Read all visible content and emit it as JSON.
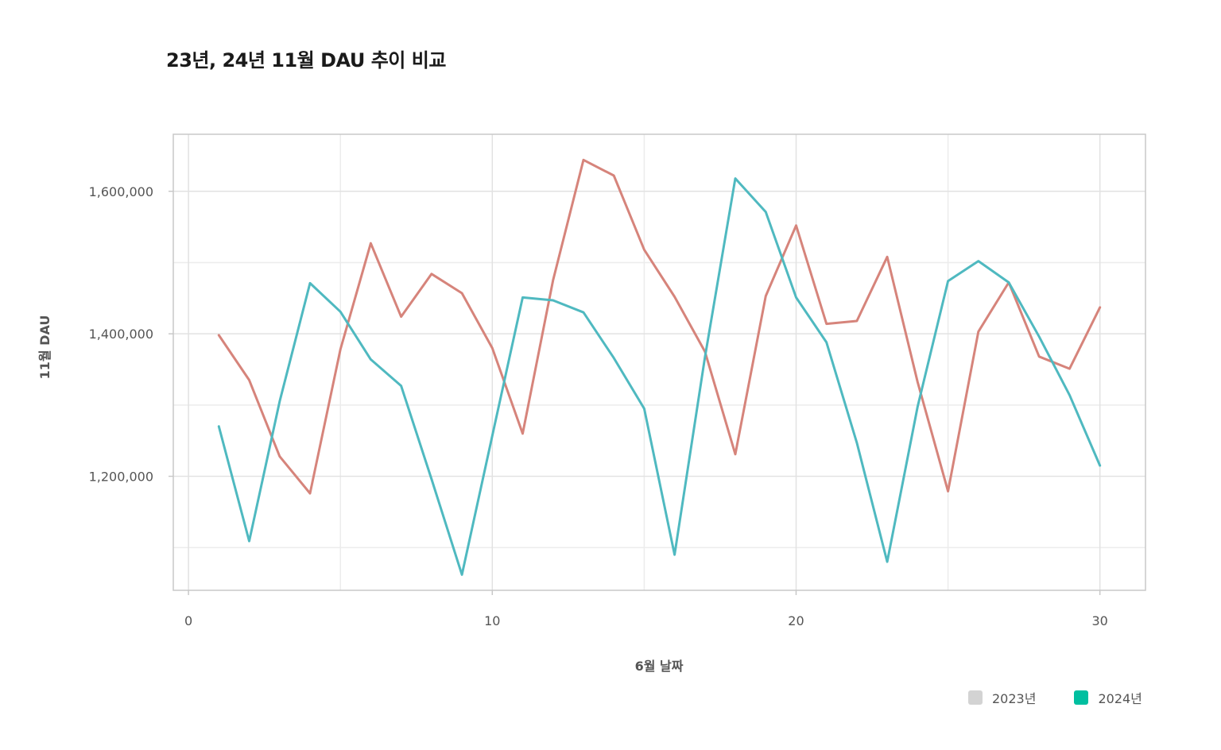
{
  "chart_data": {
    "type": "line",
    "title": "23년, 24년 11월 DAU 추이 비교",
    "xlabel": "6월 날짜",
    "ylabel": "11월 DAU",
    "xlim": [
      -0.5,
      31.5
    ],
    "ylim": [
      1040000,
      1680000
    ],
    "xticks": [
      0,
      10,
      20,
      30
    ],
    "xtick_labels": [
      "0",
      "10",
      "20",
      "30"
    ],
    "yticks": [
      1200000,
      1400000,
      1600000
    ],
    "ytick_labels": [
      "1,200,000",
      "1,400,000",
      "1,600,000"
    ],
    "grid": true,
    "legend_position": "bottom-right",
    "legend": [
      {
        "label": "2023년",
        "color": "#d3d3d3"
      },
      {
        "label": "2024년",
        "color": "#00bfa0"
      }
    ],
    "series": [
      {
        "color": "#d6847b",
        "x": [
          1,
          2,
          3,
          4,
          5,
          6,
          7,
          8,
          9,
          10,
          11,
          12,
          13,
          14,
          15,
          16,
          17,
          18,
          19,
          20,
          21,
          22,
          23,
          24,
          25,
          26,
          27,
          28,
          29,
          30
        ],
        "values": [
          1398000,
          1335000,
          1228000,
          1176000,
          1378000,
          1527000,
          1424000,
          1484000,
          1457000,
          1380000,
          1260000,
          1475000,
          1644000,
          1622000,
          1518000,
          1452000,
          1375000,
          1231000,
          1453000,
          1552000,
          1414000,
          1418000,
          1508000,
          1332000,
          1179000,
          1403000,
          1472000,
          1368000,
          1351000,
          1437000
        ]
      },
      {
        "color": "#4fb9c0",
        "x": [
          1,
          2,
          3,
          4,
          5,
          6,
          7,
          8,
          9,
          10,
          11,
          12,
          13,
          14,
          15,
          16,
          17,
          18,
          19,
          20,
          21,
          22,
          23,
          24,
          25,
          26,
          27,
          28,
          29,
          30
        ],
        "values": [
          1270000,
          1109000,
          1305000,
          1471000,
          1431000,
          1364000,
          1327000,
          1196000,
          1062000,
          1257000,
          1451000,
          1447000,
          1430000,
          1366000,
          1295000,
          1090000,
          1367000,
          1618000,
          1571000,
          1451000,
          1388000,
          1247000,
          1080000,
          1298000,
          1474000,
          1502000,
          1472000,
          1396000,
          1314000,
          1215000
        ]
      }
    ]
  }
}
